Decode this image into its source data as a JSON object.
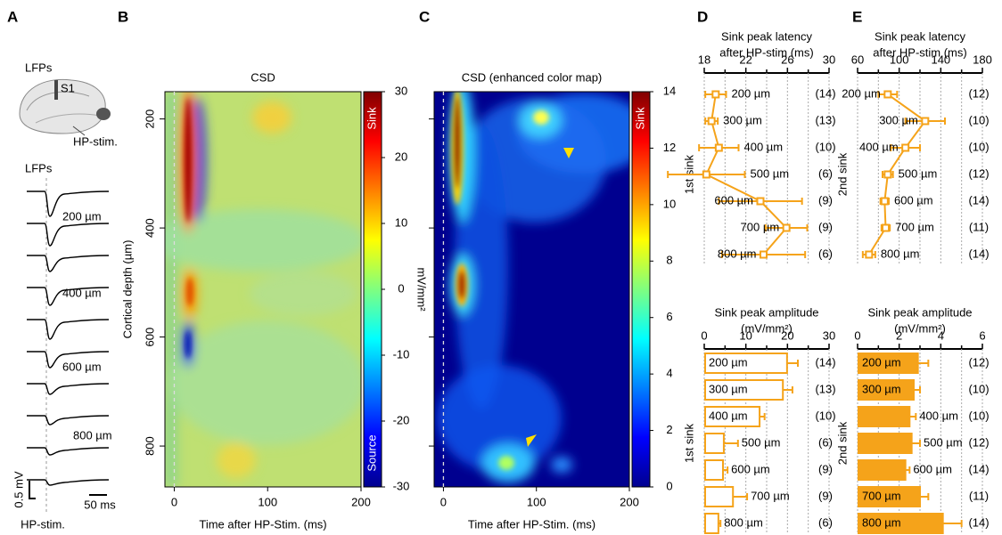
{
  "panels": {
    "letters": [
      "A",
      "B",
      "C",
      "D",
      "E"
    ],
    "a": {
      "lfps_top": "LFPs",
      "s1": "S1",
      "hp_stim_brain": "HP-stim.",
      "lfps": "LFPs",
      "depths": [
        "200 µm",
        "400 µm",
        "600 µm",
        "800 µm"
      ],
      "scale_v": "0.5 mV",
      "scale_t": "50 ms",
      "hp_stim": "HP-stim."
    }
  },
  "chart_data": [
    {
      "type": "heatmap",
      "title": "CSD",
      "xlabel": "Time after HP-Stim. (ms)",
      "ylabel": "Cortical depth (µm)",
      "xlim": [
        -10,
        200
      ],
      "xticks": [
        0,
        100,
        200
      ],
      "ylim": [
        150,
        875
      ],
      "yticks": [
        200,
        400,
        600,
        800
      ],
      "show_ytick_labels": true,
      "colormap": "jet",
      "colorbar": {
        "lim": [
          -30,
          30
        ],
        "ticks": [
          -30,
          -20,
          -10,
          0,
          10,
          20,
          30
        ],
        "label": "mV/mm²",
        "sink": "Sink",
        "source": "Source"
      }
    },
    {
      "type": "heatmap",
      "title": "CSD (enhanced color map)",
      "xlabel": "Time after HP-Stim. (ms)",
      "xlim": [
        -10,
        200
      ],
      "xticks": [
        0,
        100,
        200
      ],
      "ylim": [
        150,
        875
      ],
      "yticks": [
        200,
        400,
        600,
        800
      ],
      "show_ytick_labels": false,
      "colormap": "jet",
      "colorbar": {
        "lim": [
          0,
          14
        ],
        "ticks": [
          0,
          2,
          4,
          6,
          8,
          10,
          12,
          14
        ],
        "sink": "Sink"
      }
    },
    {
      "type": "errorbar-line",
      "title": [
        "Sink peak latency",
        "after HP-stim (ms)"
      ],
      "ylabel": "1st sink",
      "categories": [
        "200 µm",
        "300 µm",
        "400 µm",
        "500 µm",
        "600 µm",
        "700 µm",
        "800 µm"
      ],
      "values": [
        19.1,
        18.7,
        19.4,
        18.2,
        23.4,
        25.9,
        23.7
      ],
      "errors": [
        1.0,
        0.6,
        1.9,
        3.7,
        4.0,
        2.0,
        4.0
      ],
      "n_labels": [
        "(14)",
        "(13)",
        "(10)",
        "(6)",
        "(9)",
        "(9)",
        "(6)"
      ],
      "xlim": [
        18,
        30
      ],
      "xticks": [
        18,
        22,
        26,
        30
      ],
      "minor_xticks": [
        20,
        24,
        28
      ],
      "grid": true,
      "color": "#f5a31a"
    },
    {
      "type": "errorbar-line",
      "title": [
        "Sink peak latency",
        "after HP-stim (ms)"
      ],
      "ylabel": "2nd sink",
      "categories": [
        "200 µm",
        "300 µm",
        "400 µm",
        "500 µm",
        "600 µm",
        "700 µm",
        "800 µm"
      ],
      "values": [
        89,
        125,
        106,
        89,
        86,
        87,
        71
      ],
      "errors": [
        9,
        19,
        14,
        5,
        4,
        4,
        6
      ],
      "n_labels": [
        "(12)",
        "(10)",
        "(10)",
        "(12)",
        "(14)",
        "(11)",
        "(14)"
      ],
      "xlim": [
        60,
        180
      ],
      "xticks": [
        60,
        100,
        140,
        180
      ],
      "minor_xticks": [
        80,
        120,
        160
      ],
      "grid": true,
      "color": "#f5a31a"
    },
    {
      "type": "bar",
      "title": [
        "Sink peak amplitude",
        "(mV/mm²)"
      ],
      "ylabel": "1st sink",
      "categories": [
        "200 µm",
        "300 µm",
        "400 µm",
        "500 µm",
        "600 µm",
        "700 µm",
        "800 µm"
      ],
      "values": [
        19.9,
        18.9,
        13.3,
        4.7,
        4.5,
        6.9,
        3.4
      ],
      "errors": [
        2.6,
        2.3,
        1.2,
        3.4,
        1.1,
        3.4,
        0.5
      ],
      "n_labels": [
        "(14)",
        "(13)",
        "(10)",
        "(6)",
        "(9)",
        "(9)",
        "(6)"
      ],
      "xlim": [
        0,
        30
      ],
      "xticks": [
        0,
        10,
        20,
        30
      ],
      "minor_xticks": [
        5,
        15,
        25
      ],
      "grid": true,
      "filled": false,
      "color": "#f5a31a"
    },
    {
      "type": "bar",
      "title": [
        "Sink peak amplitude",
        "(mV/mm²)"
      ],
      "ylabel": "2nd sink",
      "categories": [
        "200 µm",
        "300 µm",
        "400 µm",
        "500 µm",
        "600 µm",
        "700 µm",
        "800 µm"
      ],
      "values": [
        2.9,
        2.7,
        2.5,
        2.6,
        2.3,
        3.0,
        4.1
      ],
      "errors": [
        0.5,
        0.3,
        0.3,
        0.4,
        0.2,
        0.4,
        0.9
      ],
      "n_labels": [
        "(12)",
        "(10)",
        "(10)",
        "(12)",
        "(14)",
        "(11)",
        "(14)"
      ],
      "xlim": [
        0,
        6
      ],
      "xticks": [
        0,
        2,
        4,
        6
      ],
      "minor_xticks": [
        1,
        3,
        5
      ],
      "grid": true,
      "filled": true,
      "color": "#f5a31a"
    }
  ]
}
